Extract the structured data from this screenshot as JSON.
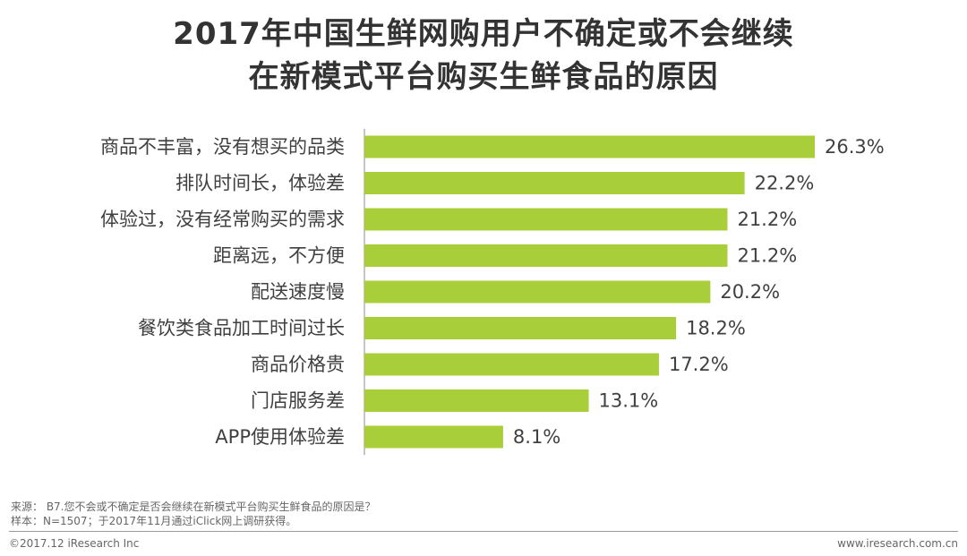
{
  "title_line1": "2017年中国生鲜网购用户不确定或不会继续",
  "title_line2": "在新模式平台购买生鲜食品的原因",
  "chart_data": {
    "type": "bar",
    "orientation": "horizontal",
    "categories": [
      "商品不丰富，没有想买的品类",
      "排队时间长，体验差",
      "体验过，没有经常购买的需求",
      "距离远，不方便",
      "配送速度慢",
      "餐饮类食品加工时间过长",
      "商品价格贵",
      "门店服务差",
      "APP使用体验差"
    ],
    "values": [
      26.3,
      22.2,
      21.2,
      21.2,
      20.2,
      18.2,
      17.2,
      13.1,
      8.1
    ],
    "value_labels": [
      "26.3%",
      "22.2%",
      "21.2%",
      "21.2%",
      "20.2%",
      "18.2%",
      "17.2%",
      "13.1%",
      "8.1%"
    ],
    "unit": "%",
    "bar_color": "#a8cf3a",
    "xlim": [
      0,
      26.3
    ],
    "legend": "none",
    "grid": false
  },
  "notes": {
    "source": "来源： B7.您不会或不确定是否会继续在新模式平台购买生鲜食品的原因是？",
    "sample": "样本：N=1507；于2017年11月通过iClick网上调研获得。"
  },
  "footer": {
    "copyright": "©2017.12 iResearch Inc",
    "url": "www.iresearch.com.cn"
  }
}
